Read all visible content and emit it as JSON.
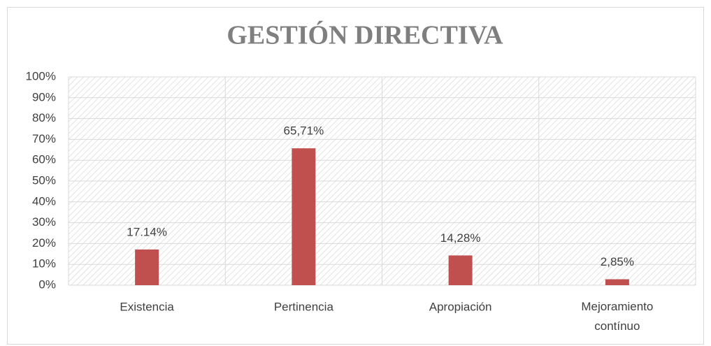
{
  "chart_data": {
    "type": "bar",
    "title": "GESTIÓN DIRECTIVA",
    "categories": [
      "Existencia",
      "Pertinencia",
      "Apropiación",
      "Mejoramiento contínuo"
    ],
    "values": [
      17.14,
      65.71,
      14.28,
      2.85
    ],
    "value_labels": [
      "17.14%",
      "65,71%",
      "14,28%",
      "2,85%"
    ],
    "color": "#c0504d",
    "ylim": [
      0,
      100
    ],
    "yticks": [
      {
        "value": 0,
        "label": "0%"
      },
      {
        "value": 10,
        "label": "10%"
      },
      {
        "value": 20,
        "label": "20%"
      },
      {
        "value": 30,
        "label": "30%"
      },
      {
        "value": 40,
        "label": "40%"
      },
      {
        "value": 50,
        "label": "50%"
      },
      {
        "value": 60,
        "label": "60%"
      },
      {
        "value": 70,
        "label": "70%"
      },
      {
        "value": 80,
        "label": "80%"
      },
      {
        "value": 90,
        "label": "90%"
      },
      {
        "value": 100,
        "label": "100%"
      }
    ],
    "grid": true
  }
}
